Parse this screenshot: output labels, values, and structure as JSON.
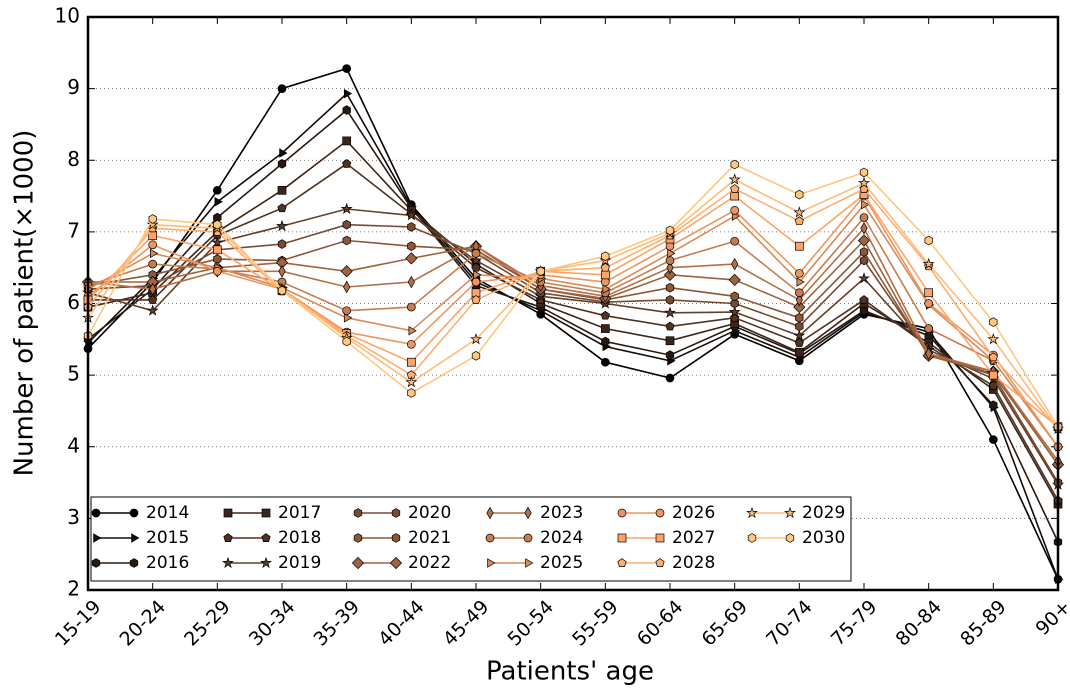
{
  "chart_data": {
    "type": "line",
    "x_label": "Patients' age",
    "y_label": "Number of patient(×1000)",
    "categories": [
      "15-19",
      "20-24",
      "25-29",
      "30-34",
      "35-39",
      "40-44",
      "45-49",
      "50-54",
      "55-59",
      "60-64",
      "65-69",
      "70-74",
      "75-79",
      "80-84",
      "85-89",
      "90+"
    ],
    "ylim": [
      2,
      10
    ],
    "yticks": [
      2,
      3,
      4,
      5,
      6,
      7,
      8,
      9,
      10
    ],
    "grid": true,
    "legend": "lower left",
    "series": [
      {
        "name": "2014",
        "color": "#000000",
        "marker": "circle",
        "values": [
          5.37,
          6.3,
          7.58,
          9.0,
          9.28,
          7.38,
          6.35,
          5.85,
          5.18,
          4.96,
          5.57,
          5.2,
          5.85,
          5.65,
          4.1,
          2.15
        ]
      },
      {
        "name": "2015",
        "color": "#140c08",
        "marker": "triangle",
        "values": [
          5.45,
          6.35,
          7.42,
          8.1,
          8.93,
          7.35,
          6.3,
          5.9,
          5.4,
          5.2,
          5.62,
          5.25,
          5.88,
          5.6,
          4.55,
          2.15
        ]
      },
      {
        "name": "2016",
        "color": "#281910",
        "marker": "hexagon",
        "values": [
          5.5,
          6.2,
          7.2,
          7.95,
          8.7,
          7.33,
          6.25,
          5.95,
          5.47,
          5.28,
          5.68,
          5.3,
          5.9,
          5.55,
          4.58,
          2.67
        ]
      },
      {
        "name": "2017",
        "color": "#3c2518",
        "marker": "square",
        "values": [
          5.95,
          6.15,
          7.0,
          7.58,
          8.27,
          7.3,
          6.55,
          6.0,
          5.65,
          5.48,
          5.72,
          5.32,
          6.0,
          5.45,
          4.8,
          3.2
        ]
      },
      {
        "name": "2018",
        "color": "#503220",
        "marker": "pentagon",
        "values": [
          6.05,
          6.05,
          6.95,
          7.33,
          7.95,
          7.25,
          6.5,
          6.05,
          5.83,
          5.68,
          5.8,
          5.45,
          6.05,
          5.4,
          4.85,
          3.25
        ]
      },
      {
        "name": "2019",
        "color": "#643e28",
        "marker": "star",
        "values": [
          6.15,
          5.9,
          6.85,
          7.08,
          7.32,
          7.23,
          6.6,
          6.1,
          6.0,
          5.87,
          5.88,
          5.55,
          6.35,
          5.35,
          4.95,
          3.47
        ]
      },
      {
        "name": "2020",
        "color": "#784b30",
        "marker": "hexagon",
        "values": [
          6.2,
          6.25,
          6.75,
          6.83,
          7.1,
          7.07,
          6.7,
          6.15,
          6.02,
          6.05,
          6.0,
          5.68,
          6.6,
          5.3,
          5.0,
          3.5
        ]
      },
      {
        "name": "2021",
        "color": "#8b5737",
        "marker": "hexagon",
        "values": [
          6.25,
          6.4,
          6.62,
          6.6,
          6.88,
          6.8,
          6.75,
          6.2,
          6.05,
          6.22,
          6.1,
          5.8,
          6.72,
          5.27,
          5.02,
          3.75
        ]
      },
      {
        "name": "2022",
        "color": "#9f643f",
        "marker": "diamond",
        "values": [
          6.3,
          6.3,
          6.5,
          6.57,
          6.45,
          6.63,
          6.8,
          6.2,
          6.07,
          6.4,
          6.33,
          5.95,
          6.88,
          5.27,
          5.05,
          3.75
        ]
      },
      {
        "name": "2023",
        "color": "#b37047",
        "marker": "thin-diamond",
        "values": [
          6.3,
          6.2,
          6.45,
          6.45,
          6.23,
          6.3,
          6.8,
          6.25,
          6.1,
          6.5,
          6.55,
          6.05,
          7.05,
          5.3,
          5.05,
          3.8
        ]
      },
      {
        "name": "2024",
        "color": "#c77d4f",
        "marker": "circle",
        "values": [
          6.25,
          6.55,
          6.48,
          6.3,
          5.9,
          5.95,
          6.7,
          6.3,
          6.15,
          6.6,
          6.87,
          6.15,
          7.2,
          5.65,
          5.2,
          4.0
        ]
      },
      {
        "name": "2025",
        "color": "#db8957",
        "marker": "triangle",
        "values": [
          6.2,
          6.7,
          6.5,
          6.22,
          5.8,
          5.62,
          6.4,
          6.35,
          6.2,
          6.7,
          7.22,
          6.3,
          7.38,
          5.98,
          5.2,
          4.0
        ]
      },
      {
        "name": "2026",
        "color": "#ef955f",
        "marker": "circle",
        "values": [
          6.1,
          6.82,
          6.45,
          6.2,
          5.6,
          5.43,
          6.3,
          6.4,
          6.3,
          6.8,
          7.3,
          6.42,
          7.5,
          6.0,
          5.28,
          4.0
        ]
      },
      {
        "name": "2027",
        "color": "#ffa267",
        "marker": "square",
        "values": [
          6.05,
          6.95,
          6.75,
          6.18,
          5.58,
          5.18,
          6.15,
          6.45,
          6.4,
          6.9,
          7.5,
          6.8,
          7.52,
          6.15,
          5.0,
          4.28
        ]
      },
      {
        "name": "2028",
        "color": "#ffae6f",
        "marker": "pentagon",
        "values": [
          5.95,
          7.05,
          7.0,
          6.17,
          5.55,
          5.0,
          6.05,
          6.45,
          6.5,
          6.95,
          7.6,
          7.15,
          7.6,
          6.52,
          5.25,
          4.25
        ]
      },
      {
        "name": "2029",
        "color": "#ffbb77",
        "marker": "star",
        "values": [
          5.8,
          7.1,
          7.05,
          6.2,
          5.52,
          4.9,
          5.5,
          6.45,
          6.6,
          6.98,
          7.73,
          7.27,
          7.68,
          6.55,
          5.5,
          4.25
        ]
      },
      {
        "name": "2030",
        "color": "#ffc77f",
        "marker": "hexagon",
        "values": [
          5.55,
          7.18,
          7.1,
          6.18,
          5.47,
          4.75,
          5.27,
          6.45,
          6.66,
          7.02,
          7.94,
          7.52,
          7.83,
          6.88,
          5.74,
          4.28
        ]
      }
    ]
  }
}
